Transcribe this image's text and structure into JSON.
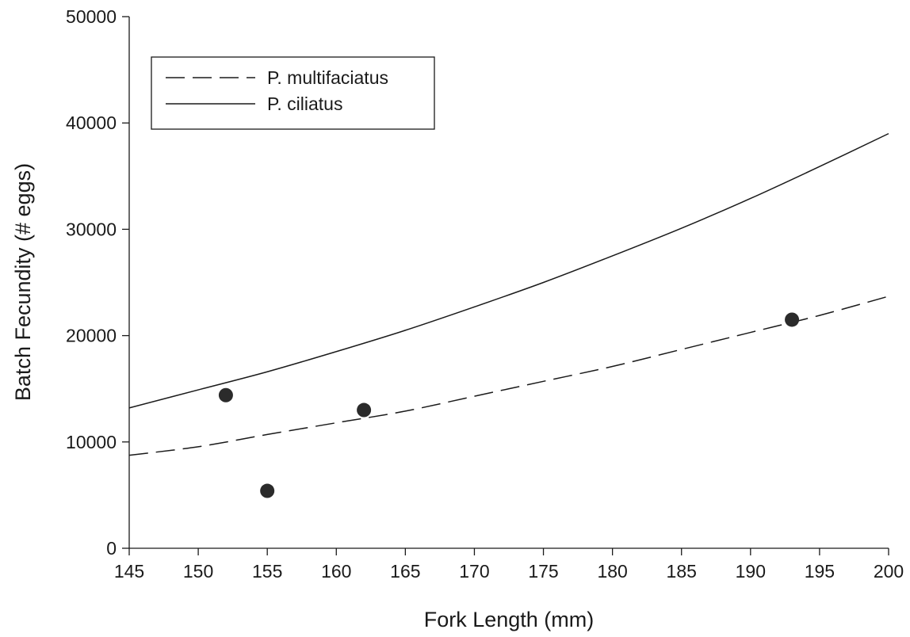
{
  "chart_data": {
    "type": "scatter",
    "xlabel": "Fork Length (mm)",
    "ylabel": "Batch Fecundity (# eggs)",
    "xlim": [
      145,
      200
    ],
    "ylim": [
      0,
      50000
    ],
    "x_ticks": [
      145,
      150,
      155,
      160,
      165,
      170,
      175,
      180,
      185,
      190,
      195,
      200
    ],
    "y_ticks": [
      0,
      10000,
      20000,
      30000,
      40000,
      50000
    ],
    "grid": false,
    "legend_position": "top-left",
    "points": [
      {
        "x": 152,
        "y": 14400
      },
      {
        "x": 155,
        "y": 5400
      },
      {
        "x": 162,
        "y": 13000
      },
      {
        "x": 193,
        "y": 21500
      }
    ],
    "series": [
      {
        "name": "P. multifaciatus",
        "style": "dashed",
        "x": [
          145,
          150,
          155,
          160,
          165,
          170,
          175,
          180,
          185,
          190,
          195,
          200
        ],
        "values": [
          8750,
          9550,
          10700,
          11800,
          12900,
          14300,
          15700,
          17100,
          18700,
          20300,
          21900,
          23700
        ]
      },
      {
        "name": "P. ciliatus",
        "style": "solid",
        "x": [
          145,
          150,
          155,
          160,
          165,
          170,
          175,
          180,
          185,
          190,
          195,
          200
        ],
        "values": [
          13200,
          14900,
          16600,
          18500,
          20500,
          22700,
          25000,
          27500,
          30100,
          32900,
          35900,
          39000
        ]
      }
    ],
    "colors": {
      "line": "#1a1a1a",
      "marker": "#2b2b2b",
      "background": "#ffffff"
    }
  }
}
